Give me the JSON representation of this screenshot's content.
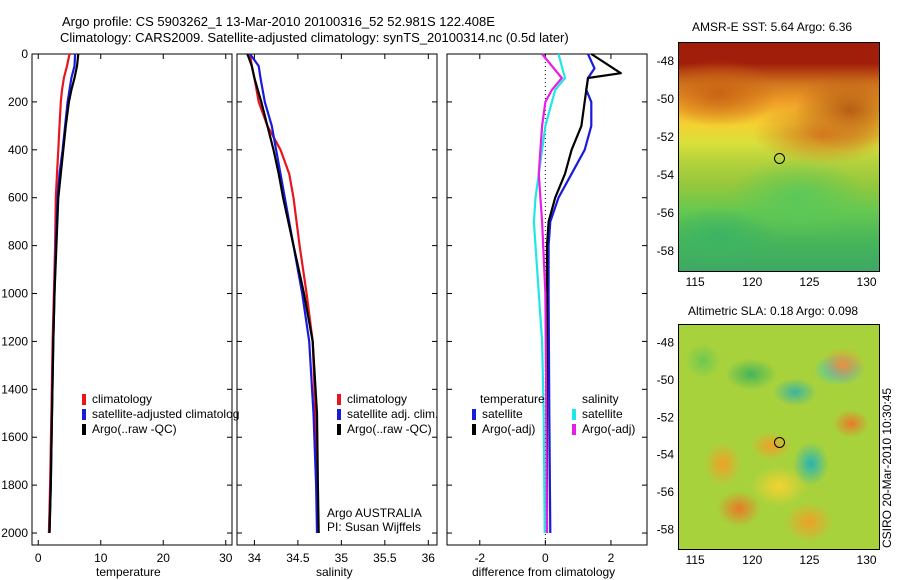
{
  "header": {
    "line1": "Argo profile: CS 5903262_1 13-Mar-2010 20100316_52 52.981S 122.408E",
    "line2": "Climatology: CARS2009. Satellite-adjusted climatology: synTS_20100314.nc (0.5d later)"
  },
  "colors": {
    "red": "#e8141e",
    "blue": "#1a1adc",
    "black": "#000000",
    "cyan": "#22e6e6",
    "magenta": "#e61ee6"
  },
  "chart_data": [
    {
      "type": "line",
      "id": "temperature",
      "xlabel": "temperature",
      "xlim": [
        -1,
        31
      ],
      "ylim": [
        0,
        2050
      ],
      "y_inverted": true,
      "xticks": [
        0,
        10,
        20,
        30
      ],
      "yticks": [
        0,
        200,
        400,
        600,
        800,
        1000,
        1200,
        1400,
        1600,
        1800,
        2000
      ],
      "series": [
        {
          "name": "climatology",
          "color": "red",
          "points": [
            [
              5.0,
              0
            ],
            [
              4.6,
              50
            ],
            [
              4.1,
              100
            ],
            [
              3.8,
              150
            ],
            [
              3.6,
              200
            ],
            [
              3.4,
              300
            ],
            [
              3.2,
              400
            ],
            [
              3.0,
              500
            ],
            [
              2.8,
              600
            ],
            [
              2.7,
              800
            ],
            [
              2.5,
              1000
            ],
            [
              2.3,
              1200
            ],
            [
              2.1,
              1500
            ],
            [
              1.9,
              1800
            ],
            [
              1.7,
              2000
            ]
          ]
        },
        {
          "name": "satellite-adjusted climatology",
          "color": "blue",
          "points": [
            [
              5.9,
              0
            ],
            [
              5.8,
              50
            ],
            [
              5.3,
              100
            ],
            [
              5.0,
              150
            ],
            [
              4.7,
              200
            ],
            [
              4.3,
              300
            ],
            [
              3.9,
              400
            ],
            [
              3.4,
              500
            ],
            [
              3.1,
              600
            ],
            [
              2.8,
              800
            ],
            [
              2.6,
              1000
            ],
            [
              2.4,
              1200
            ],
            [
              2.2,
              1500
            ],
            [
              2.0,
              1800
            ],
            [
              1.8,
              2000
            ]
          ]
        },
        {
          "name": "Argo(..raw -QC)",
          "color": "black",
          "points": [
            [
              6.4,
              0
            ],
            [
              6.2,
              50
            ],
            [
              5.8,
              100
            ],
            [
              5.3,
              150
            ],
            [
              4.9,
              200
            ],
            [
              4.4,
              300
            ],
            [
              4.0,
              400
            ],
            [
              3.6,
              500
            ],
            [
              3.2,
              600
            ],
            [
              2.9,
              800
            ],
            [
              2.6,
              1000
            ],
            [
              2.4,
              1200
            ],
            [
              2.2,
              1500
            ],
            [
              2.0,
              1800
            ],
            [
              1.8,
              2000
            ]
          ]
        }
      ],
      "legend": [
        "climatology",
        "satellite-adjusted climatolog",
        "Argo(..raw -QC)"
      ]
    },
    {
      "type": "line",
      "id": "salinity",
      "xlabel": "salinity",
      "xlim": [
        33.8,
        36.1
      ],
      "ylim": [
        0,
        2050
      ],
      "y_inverted": true,
      "xticks": [
        34,
        34.5,
        35,
        35.5,
        36
      ],
      "series": [
        {
          "name": "climatology",
          "color": "red",
          "points": [
            [
              33.95,
              0
            ],
            [
              33.97,
              50
            ],
            [
              34.0,
              100
            ],
            [
              34.05,
              200
            ],
            [
              34.15,
              300
            ],
            [
              34.3,
              400
            ],
            [
              34.4,
              500
            ],
            [
              34.45,
              600
            ],
            [
              34.52,
              800
            ],
            [
              34.6,
              1000
            ],
            [
              34.67,
              1200
            ],
            [
              34.7,
              1500
            ],
            [
              34.72,
              1800
            ],
            [
              34.73,
              2000
            ]
          ]
        },
        {
          "name": "satellite adj. clim.",
          "color": "blue",
          "points": [
            [
              33.95,
              0
            ],
            [
              34.05,
              50
            ],
            [
              34.07,
              100
            ],
            [
              34.12,
              200
            ],
            [
              34.2,
              300
            ],
            [
              34.25,
              400
            ],
            [
              34.3,
              500
            ],
            [
              34.35,
              600
            ],
            [
              34.45,
              800
            ],
            [
              34.55,
              1000
            ],
            [
              34.63,
              1200
            ],
            [
              34.68,
              1500
            ],
            [
              34.71,
              1800
            ],
            [
              34.72,
              2000
            ]
          ]
        },
        {
          "name": "Argo(..raw -QC)",
          "color": "black",
          "points": [
            [
              33.92,
              0
            ],
            [
              33.97,
              50
            ],
            [
              34.0,
              100
            ],
            [
              34.08,
              200
            ],
            [
              34.15,
              300
            ],
            [
              34.22,
              400
            ],
            [
              34.28,
              500
            ],
            [
              34.33,
              600
            ],
            [
              34.45,
              800
            ],
            [
              34.57,
              1000
            ],
            [
              34.67,
              1200
            ],
            [
              34.72,
              1500
            ],
            [
              34.73,
              1800
            ],
            [
              34.74,
              2000
            ]
          ]
        }
      ],
      "legend": [
        "climatology",
        "satellite adj. clim.",
        "Argo(..raw -QC)"
      ],
      "annotation": [
        "Argo AUSTRALIA",
        "PI: Susan Wijffels"
      ]
    },
    {
      "type": "line",
      "id": "difference",
      "xlabel": "difference from climatology",
      "xlim": [
        -3,
        3.1
      ],
      "ylim": [
        0,
        2050
      ],
      "y_inverted": true,
      "xticks": [
        -2,
        0,
        2
      ],
      "zero_line": true,
      "series": [
        {
          "name": "temperature satellite",
          "color": "blue",
          "points": [
            [
              1.3,
              0
            ],
            [
              1.5,
              60
            ],
            [
              1.3,
              100
            ],
            [
              1.25,
              150
            ],
            [
              1.4,
              200
            ],
            [
              1.4,
              300
            ],
            [
              1.2,
              400
            ],
            [
              0.8,
              500
            ],
            [
              0.4,
              600
            ],
            [
              0.15,
              700
            ],
            [
              0.1,
              800
            ],
            [
              0.1,
              1000
            ],
            [
              0.12,
              1500
            ],
            [
              0.15,
              2000
            ]
          ]
        },
        {
          "name": "temperature Argo(-adj)",
          "color": "black",
          "points": [
            [
              1.4,
              0
            ],
            [
              2.3,
              80
            ],
            [
              1.3,
              100
            ],
            [
              1.25,
              150
            ],
            [
              1.1,
              300
            ],
            [
              0.8,
              400
            ],
            [
              0.6,
              500
            ],
            [
              0.3,
              600
            ],
            [
              0.1,
              700
            ],
            [
              0.05,
              800
            ],
            [
              0.05,
              1000
            ],
            [
              0.05,
              1500
            ],
            [
              0.05,
              2000
            ]
          ]
        },
        {
          "name": "salinity satellite",
          "color": "cyan",
          "points": [
            [
              0.4,
              0
            ],
            [
              0.6,
              100
            ],
            [
              0.3,
              150
            ],
            [
              0.2,
              200
            ],
            [
              0.0,
              300
            ],
            [
              -0.1,
              400
            ],
            [
              -0.2,
              500
            ],
            [
              -0.3,
              600
            ],
            [
              -0.35,
              700
            ],
            [
              -0.3,
              800
            ],
            [
              -0.2,
              1000
            ],
            [
              -0.1,
              1200
            ],
            [
              -0.05,
              1500
            ],
            [
              -0.02,
              2000
            ]
          ]
        },
        {
          "name": "salinity Argo(-adj)",
          "color": "magenta",
          "points": [
            [
              -0.1,
              0
            ],
            [
              0.2,
              50
            ],
            [
              0.5,
              100
            ],
            [
              0.2,
              150
            ],
            [
              0.0,
              200
            ],
            [
              -0.1,
              300
            ],
            [
              -0.15,
              400
            ],
            [
              -0.2,
              500
            ],
            [
              -0.15,
              600
            ],
            [
              -0.1,
              700
            ],
            [
              0.0,
              1000
            ],
            [
              0.03,
              1500
            ],
            [
              0.05,
              2000
            ]
          ]
        }
      ],
      "legend_groups": [
        {
          "title": "temperature",
          "items": [
            "satellite",
            "Argo(-adj)"
          ]
        },
        {
          "title": "salinity",
          "items": [
            "satellite",
            "Argo(-adj)"
          ]
        }
      ]
    },
    {
      "type": "heatmap",
      "id": "sst-map",
      "title": "AMSR-E SST: 5.64 Argo: 6.36",
      "xlim": [
        113.5,
        131
      ],
      "ylim": [
        -59,
        -47
      ],
      "xticks": [
        115,
        120,
        125,
        130
      ],
      "yticks": [
        -48,
        -50,
        -52,
        -54,
        -56,
        -58
      ],
      "marker": [
        122.4,
        -53.0
      ]
    },
    {
      "type": "heatmap",
      "id": "sla-map",
      "title": "Altimetric SLA: 0.18 Argo: 0.098",
      "xlim": [
        113.5,
        131
      ],
      "ylim": [
        -59,
        -47
      ],
      "xticks": [
        115,
        120,
        125,
        130
      ],
      "yticks": [
        -48,
        -50,
        -52,
        -54,
        -56,
        -58
      ],
      "marker": [
        122.4,
        -53.0
      ]
    }
  ],
  "side_label": "CSIRO 20-Mar-2010 10:30:45"
}
